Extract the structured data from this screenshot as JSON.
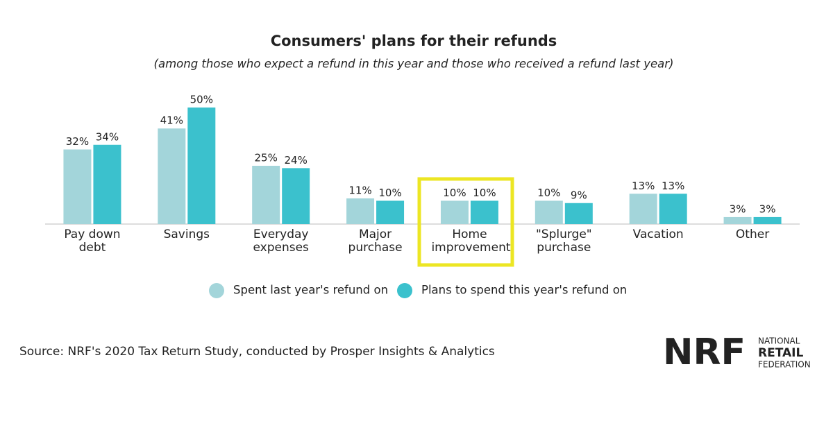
{
  "chart_data": {
    "type": "bar",
    "title": "Consumers' plans for their refunds",
    "subtitle": "(among those who expect a refund in this year and those who received a refund last year)",
    "categories": [
      "Pay down debt",
      "Savings",
      "Everyday expenses",
      "Major purchase",
      "Home improvement",
      "\"Splurge\" purchase",
      "Vacation",
      "Other"
    ],
    "series": [
      {
        "name": "Spent last year's refund on",
        "color": "#a3d5da",
        "values": [
          32,
          41,
          25,
          11,
          10,
          10,
          13,
          3
        ],
        "value_labels": [
          "32%",
          "41%",
          "25%",
          "11%",
          "10%",
          "10%",
          "13%",
          "3%"
        ]
      },
      {
        "name": "Plans to spend this year's refund on",
        "color": "#3bc1cd",
        "values": [
          34,
          50,
          24,
          10,
          10,
          9,
          13,
          3
        ],
        "value_labels": [
          "34%",
          "50%",
          "24%",
          "10%",
          "10%",
          "9%",
          "13%",
          "3%"
        ]
      }
    ],
    "ylim": [
      0,
      50
    ],
    "source": "Source: NRF's 2020 Tax Return Study, conducted by Prosper Insights & Analytics"
  },
  "logo": {
    "mark": "NRF",
    "line1": "NATIONAL",
    "line2": "RETAIL",
    "line3": "FEDERATION"
  }
}
